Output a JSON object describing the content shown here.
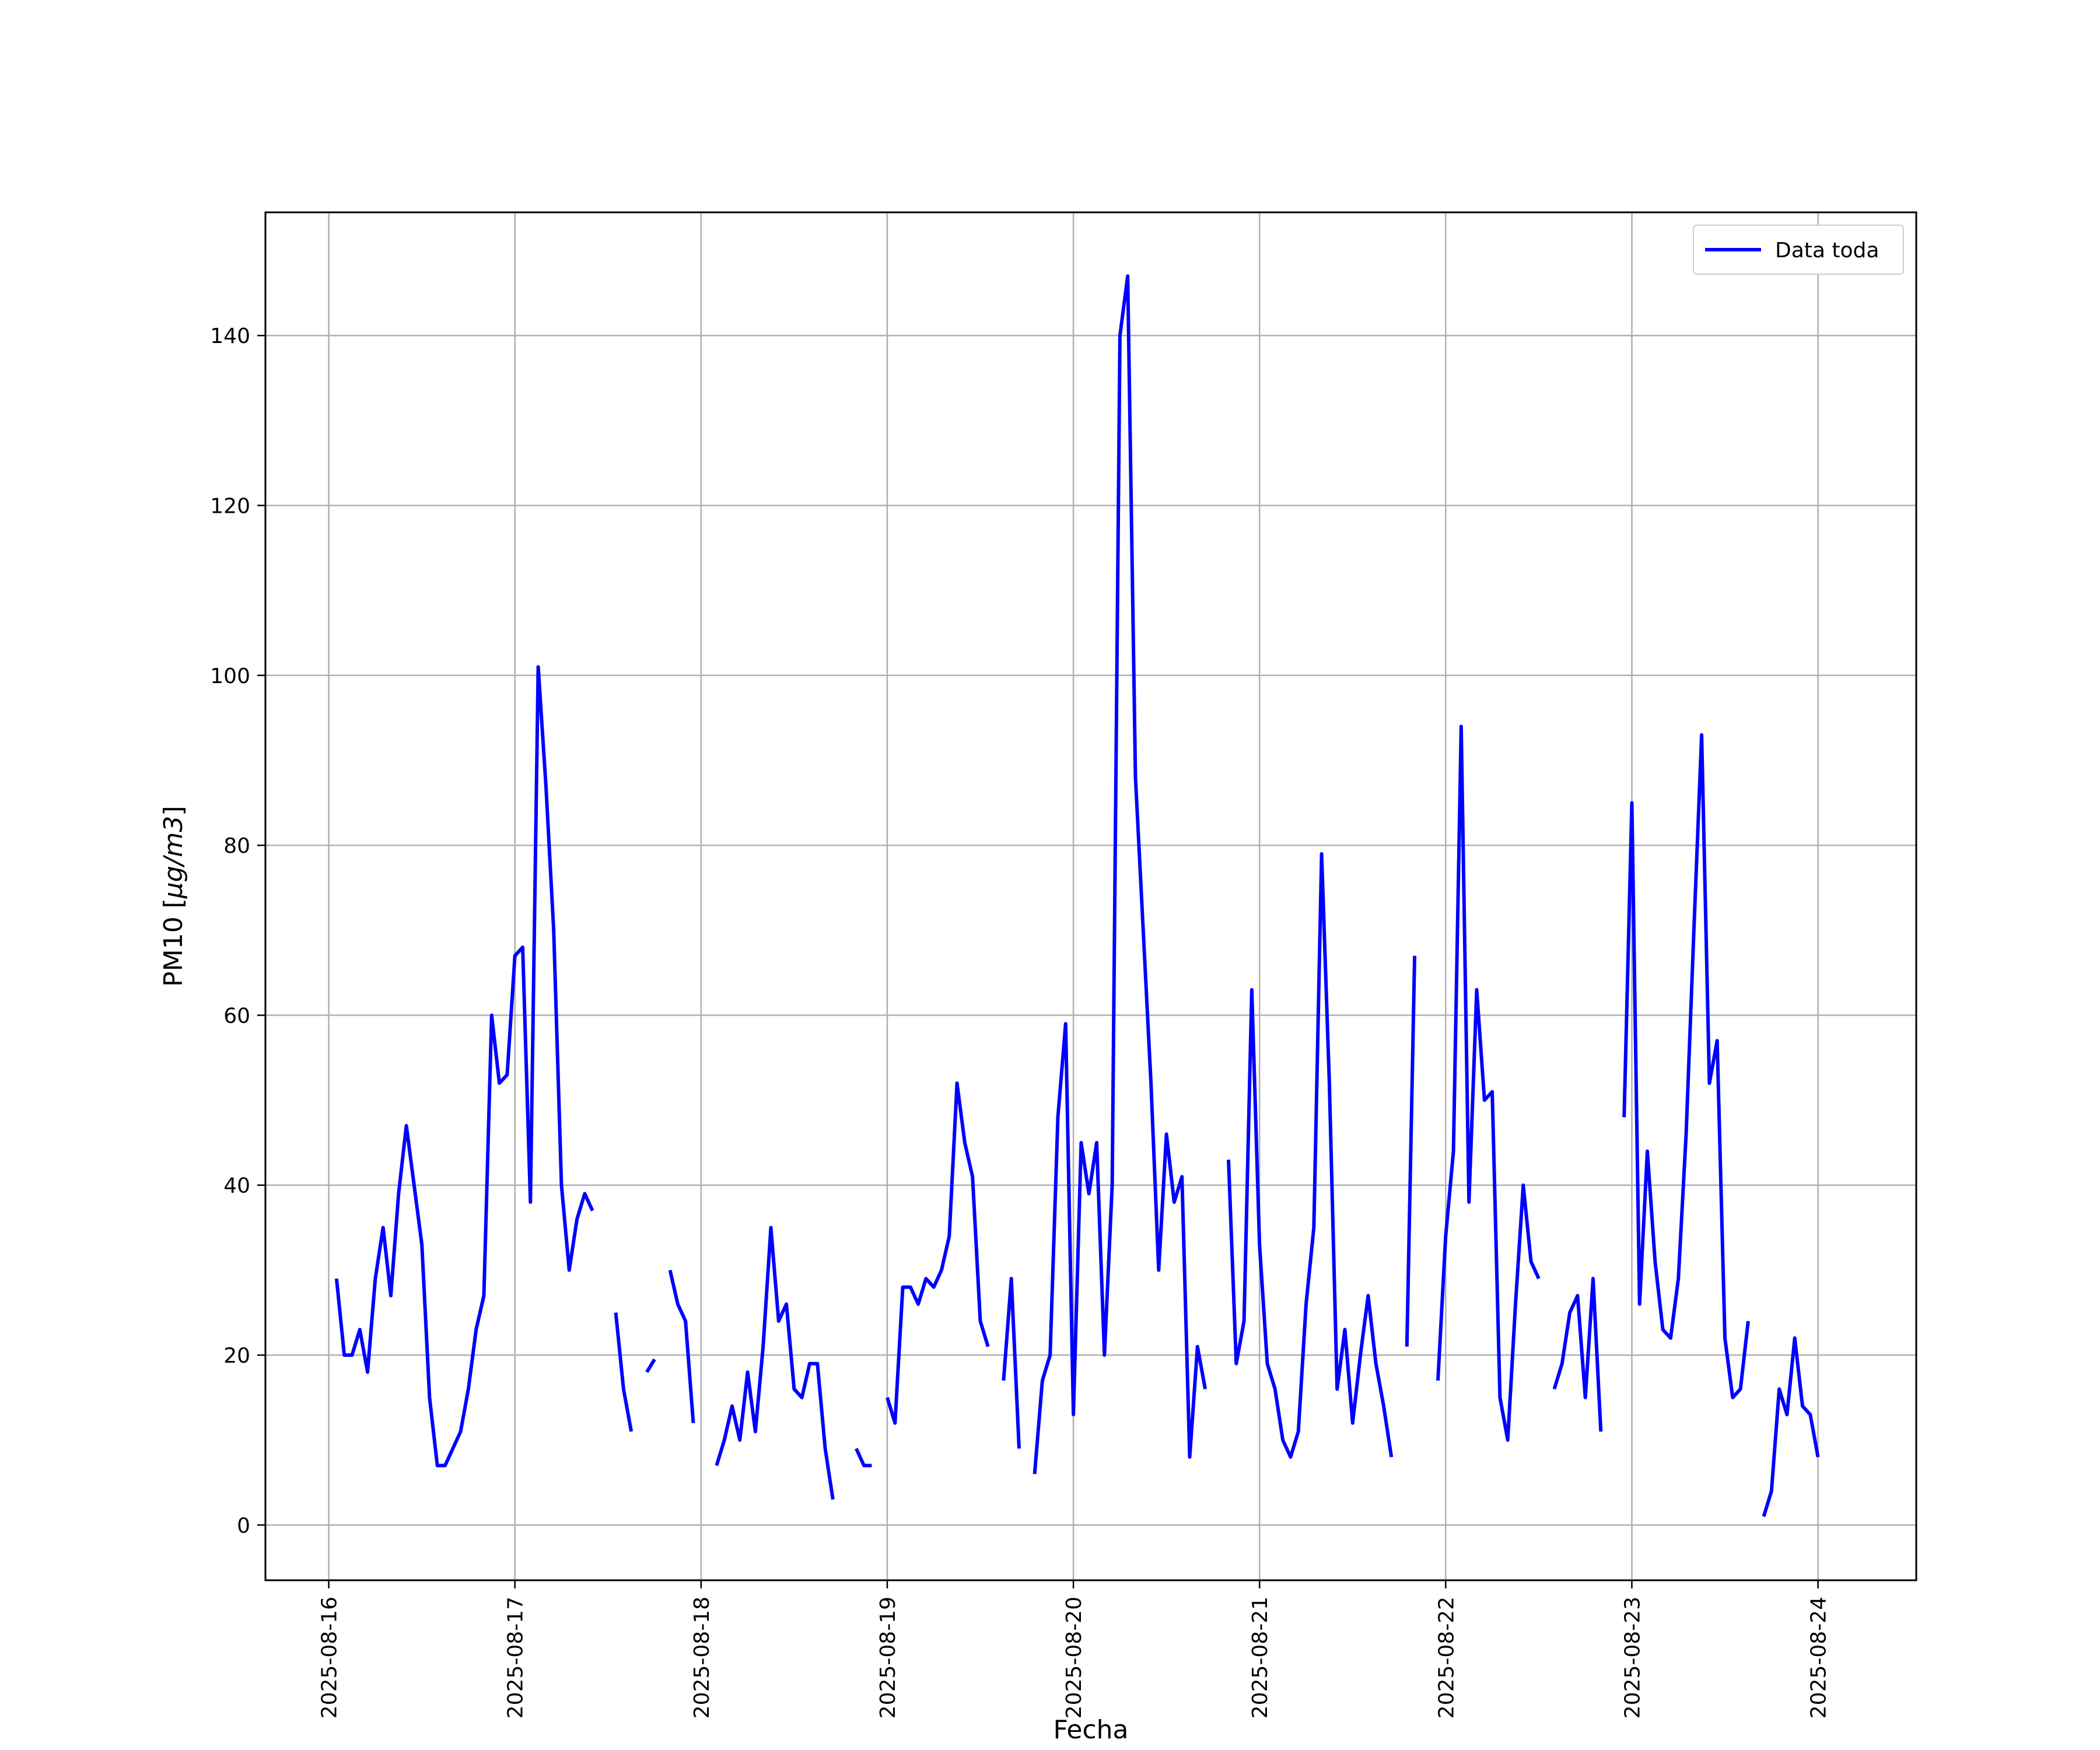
{
  "chart_data": {
    "type": "line",
    "xlabel": "Fecha",
    "ylabel_prefix": "PM10 [",
    "ylabel_unit": "μg/m3",
    "ylabel_suffix": "]",
    "xlim": [
      "2025-08-15 15:50",
      "2025-08-24 12:40"
    ],
    "ylim": [
      -6.5,
      154.5
    ],
    "grid": true,
    "legend_position": "top-right",
    "colors": {
      "line": "#0000ff",
      "grid": "#b0b0b0",
      "axes": "#000000"
    },
    "x_ticks": [
      "2025-08-16",
      "2025-08-17",
      "2025-08-18",
      "2025-08-19",
      "2025-08-20",
      "2025-08-21",
      "2025-08-22",
      "2025-08-23",
      "2025-08-24"
    ],
    "y_ticks": [
      0,
      20,
      40,
      60,
      80,
      100,
      120,
      140
    ],
    "series": [
      {
        "name": "Data toda",
        "segments": [
          [
            [
              "2025-08-16 01:00",
              29
            ],
            [
              "2025-08-16 02:00",
              20
            ],
            [
              "2025-08-16 03:00",
              20
            ],
            [
              "2025-08-16 04:00",
              23
            ],
            [
              "2025-08-16 05:00",
              18
            ],
            [
              "2025-08-16 06:00",
              29
            ],
            [
              "2025-08-16 07:00",
              35
            ],
            [
              "2025-08-16 08:00",
              27
            ],
            [
              "2025-08-16 09:00",
              39
            ],
            [
              "2025-08-16 10:00",
              47
            ],
            [
              "2025-08-16 11:00",
              40
            ],
            [
              "2025-08-16 12:00",
              33
            ],
            [
              "2025-08-16 13:00",
              15
            ],
            [
              "2025-08-16 14:00",
              7
            ],
            [
              "2025-08-16 15:00",
              7
            ],
            [
              "2025-08-16 16:00",
              9
            ],
            [
              "2025-08-16 17:00",
              11
            ],
            [
              "2025-08-16 18:00",
              16
            ],
            [
              "2025-08-16 19:00",
              23
            ],
            [
              "2025-08-16 20:00",
              27
            ],
            [
              "2025-08-16 21:00",
              60
            ],
            [
              "2025-08-16 22:00",
              52
            ],
            [
              "2025-08-16 23:00",
              53
            ],
            [
              "2025-08-17 00:00",
              67
            ],
            [
              "2025-08-17 01:00",
              68
            ],
            [
              "2025-08-17 02:00",
              38
            ],
            [
              "2025-08-17 03:00",
              101
            ],
            [
              "2025-08-17 04:00",
              87
            ],
            [
              "2025-08-17 05:00",
              70
            ],
            [
              "2025-08-17 06:00",
              40
            ],
            [
              "2025-08-17 07:00",
              30
            ],
            [
              "2025-08-17 08:00",
              36
            ],
            [
              "2025-08-17 09:00",
              39
            ],
            [
              "2025-08-17 10:00",
              37
            ]
          ],
          [
            [
              "2025-08-17 13:00",
              25
            ],
            [
              "2025-08-17 14:00",
              16
            ],
            [
              "2025-08-17 15:00",
              11
            ]
          ],
          [
            [
              "2025-08-17 17:00",
              18
            ],
            [
              "2025-08-17 18:00",
              19.5
            ]
          ],
          [
            [
              "2025-08-17 20:00",
              30
            ],
            [
              "2025-08-17 21:00",
              26
            ],
            [
              "2025-08-17 22:00",
              24
            ],
            [
              "2025-08-17 23:00",
              12
            ]
          ],
          [
            [
              "2025-08-18 02:00",
              7
            ],
            [
              "2025-08-18 03:00",
              10
            ],
            [
              "2025-08-18 04:00",
              14
            ],
            [
              "2025-08-18 05:00",
              10
            ],
            [
              "2025-08-18 06:00",
              18
            ],
            [
              "2025-08-18 07:00",
              11
            ],
            [
              "2025-08-18 08:00",
              21
            ],
            [
              "2025-08-18 09:00",
              35
            ],
            [
              "2025-08-18 10:00",
              24
            ],
            [
              "2025-08-18 11:00",
              26
            ],
            [
              "2025-08-18 12:00",
              16
            ],
            [
              "2025-08-18 13:00",
              15
            ],
            [
              "2025-08-18 14:00",
              19
            ],
            [
              "2025-08-18 15:00",
              19
            ],
            [
              "2025-08-18 16:00",
              9
            ],
            [
              "2025-08-18 17:00",
              3
            ]
          ],
          [
            [
              "2025-08-18 20:00",
              9
            ],
            [
              "2025-08-18 21:00",
              7
            ],
            [
              "2025-08-18 22:00",
              7
            ]
          ],
          [
            [
              "2025-08-19 00:00",
              15
            ],
            [
              "2025-08-19 01:00",
              12
            ],
            [
              "2025-08-19 02:00",
              28
            ],
            [
              "2025-08-19 03:00",
              28
            ],
            [
              "2025-08-19 04:00",
              26
            ],
            [
              "2025-08-19 05:00",
              29
            ],
            [
              "2025-08-19 06:00",
              28
            ],
            [
              "2025-08-19 07:00",
              30
            ],
            [
              "2025-08-19 08:00",
              34
            ],
            [
              "2025-08-19 09:00",
              52
            ],
            [
              "2025-08-19 10:00",
              45
            ],
            [
              "2025-08-19 11:00",
              41
            ],
            [
              "2025-08-19 12:00",
              24
            ],
            [
              "2025-08-19 13:00",
              21
            ]
          ],
          [
            [
              "2025-08-19 15:00",
              17
            ],
            [
              "2025-08-19 16:00",
              29
            ],
            [
              "2025-08-19 17:00",
              9
            ]
          ],
          [
            [
              "2025-08-19 19:00",
              6
            ],
            [
              "2025-08-19 20:00",
              17
            ],
            [
              "2025-08-19 21:00",
              20
            ],
            [
              "2025-08-19 22:00",
              48
            ],
            [
              "2025-08-19 23:00",
              59
            ],
            [
              "2025-08-20 00:00",
              13
            ],
            [
              "2025-08-20 01:00",
              45
            ],
            [
              "2025-08-20 02:00",
              39
            ],
            [
              "2025-08-20 03:00",
              45
            ],
            [
              "2025-08-20 04:00",
              20
            ],
            [
              "2025-08-20 05:00",
              40
            ],
            [
              "2025-08-20 06:00",
              140
            ],
            [
              "2025-08-20 07:00",
              147
            ],
            [
              "2025-08-20 08:00",
              88
            ],
            [
              "2025-08-20 09:00",
              70
            ],
            [
              "2025-08-20 10:00",
              52
            ],
            [
              "2025-08-20 11:00",
              30
            ],
            [
              "2025-08-20 12:00",
              46
            ],
            [
              "2025-08-20 13:00",
              38
            ],
            [
              "2025-08-20 14:00",
              41
            ],
            [
              "2025-08-20 15:00",
              8
            ],
            [
              "2025-08-20 16:00",
              21
            ],
            [
              "2025-08-20 17:00",
              16
            ]
          ],
          [
            [
              "2025-08-20 20:00",
              43
            ],
            [
              "2025-08-20 21:00",
              19
            ],
            [
              "2025-08-20 22:00",
              24
            ],
            [
              "2025-08-20 23:00",
              63
            ],
            [
              "2025-08-21 00:00",
              33
            ],
            [
              "2025-08-21 01:00",
              19
            ],
            [
              "2025-08-21 02:00",
              16
            ],
            [
              "2025-08-21 03:00",
              10
            ],
            [
              "2025-08-21 04:00",
              8
            ],
            [
              "2025-08-21 05:00",
              11
            ],
            [
              "2025-08-21 06:00",
              26
            ],
            [
              "2025-08-21 07:00",
              35
            ],
            [
              "2025-08-21 08:00",
              79
            ],
            [
              "2025-08-21 09:00",
              52
            ],
            [
              "2025-08-21 10:00",
              16
            ],
            [
              "2025-08-21 11:00",
              23
            ],
            [
              "2025-08-21 12:00",
              12
            ],
            [
              "2025-08-21 13:00",
              20
            ],
            [
              "2025-08-21 14:00",
              27
            ],
            [
              "2025-08-21 15:00",
              19
            ],
            [
              "2025-08-21 16:00",
              14
            ],
            [
              "2025-08-21 17:00",
              8
            ]
          ],
          [
            [
              "2025-08-21 19:00",
              21
            ],
            [
              "2025-08-21 20:00",
              67
            ]
          ],
          [
            [
              "2025-08-21 23:00",
              17
            ],
            [
              "2025-08-22 00:00",
              34
            ],
            [
              "2025-08-22 01:00",
              44
            ],
            [
              "2025-08-22 02:00",
              94
            ],
            [
              "2025-08-22 03:00",
              38
            ],
            [
              "2025-08-22 04:00",
              63
            ],
            [
              "2025-08-22 05:00",
              50
            ],
            [
              "2025-08-22 06:00",
              51
            ],
            [
              "2025-08-22 07:00",
              15
            ],
            [
              "2025-08-22 08:00",
              10
            ],
            [
              "2025-08-22 09:00",
              26
            ],
            [
              "2025-08-22 10:00",
              40
            ],
            [
              "2025-08-22 11:00",
              31
            ],
            [
              "2025-08-22 12:00",
              29
            ]
          ],
          [
            [
              "2025-08-22 14:00",
              16
            ],
            [
              "2025-08-22 15:00",
              19
            ],
            [
              "2025-08-22 16:00",
              25
            ],
            [
              "2025-08-22 17:00",
              27
            ],
            [
              "2025-08-22 18:00",
              15
            ],
            [
              "2025-08-22 19:00",
              29
            ],
            [
              "2025-08-22 20:00",
              11
            ]
          ],
          [
            [
              "2025-08-22 23:00",
              48
            ],
            [
              "2025-08-23 00:00",
              85
            ],
            [
              "2025-08-23 01:00",
              26
            ],
            [
              "2025-08-23 02:00",
              44
            ],
            [
              "2025-08-23 03:00",
              31
            ],
            [
              "2025-08-23 04:00",
              23
            ],
            [
              "2025-08-23 05:00",
              22
            ],
            [
              "2025-08-23 06:00",
              29
            ],
            [
              "2025-08-23 07:00",
              46
            ],
            [
              "2025-08-23 08:00",
              70
            ],
            [
              "2025-08-23 09:00",
              93
            ],
            [
              "2025-08-23 10:00",
              52
            ],
            [
              "2025-08-23 11:00",
              57
            ],
            [
              "2025-08-23 12:00",
              22
            ],
            [
              "2025-08-23 13:00",
              15
            ],
            [
              "2025-08-23 14:00",
              16
            ],
            [
              "2025-08-23 15:00",
              24
            ]
          ],
          [
            [
              "2025-08-23 17:00",
              1
            ],
            [
              "2025-08-23 18:00",
              4
            ],
            [
              "2025-08-23 19:00",
              16
            ],
            [
              "2025-08-23 20:00",
              13
            ],
            [
              "2025-08-23 21:00",
              22
            ],
            [
              "2025-08-23 22:00",
              14
            ],
            [
              "2025-08-23 23:00",
              13
            ],
            [
              "2025-08-24 00:00",
              8
            ]
          ]
        ]
      }
    ]
  }
}
